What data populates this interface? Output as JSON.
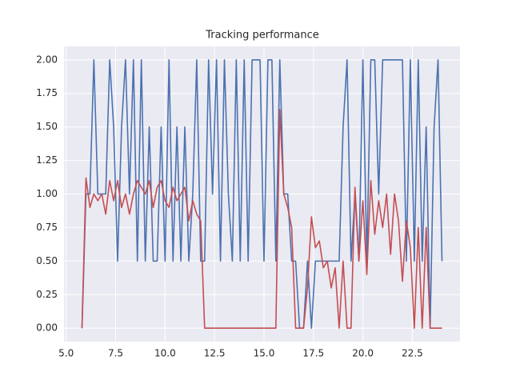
{
  "chart_data": {
    "type": "line",
    "title": "Tracking performance",
    "x": [
      5.8,
      6.0,
      6.2,
      6.4,
      6.6,
      6.8,
      7.0,
      7.2,
      7.4,
      7.6,
      7.8,
      8.0,
      8.2,
      8.4,
      8.6,
      8.8,
      9.0,
      9.2,
      9.4,
      9.6,
      9.8,
      10.0,
      10.2,
      10.4,
      10.6,
      10.8,
      11.0,
      11.2,
      11.4,
      11.6,
      11.8,
      12.0,
      12.2,
      12.4,
      12.6,
      12.8,
      13.0,
      13.2,
      13.4,
      13.6,
      13.8,
      14.0,
      14.2,
      14.4,
      14.6,
      14.8,
      15.0,
      15.2,
      15.4,
      15.6,
      15.8,
      16.0,
      16.2,
      16.4,
      16.6,
      16.8,
      17.0,
      17.2,
      17.4,
      17.6,
      17.8,
      18.0,
      18.2,
      18.4,
      18.6,
      18.8,
      19.0,
      19.2,
      19.4,
      19.6,
      19.8,
      20.0,
      20.2,
      20.4,
      20.6,
      20.8,
      21.0,
      21.2,
      21.4,
      21.6,
      21.8,
      22.0,
      22.2,
      22.4,
      22.6,
      22.8,
      23.0,
      23.2,
      23.4,
      23.6,
      23.8,
      24.0
    ],
    "series": [
      {
        "color": "#4c72b0",
        "values": [
          0,
          1,
          1,
          2,
          1,
          1,
          1,
          2,
          1.5,
          0.5,
          1.5,
          2,
          1,
          2,
          0.5,
          2,
          0.5,
          1.5,
          0.5,
          0.5,
          1.5,
          0.5,
          2,
          0.5,
          1.5,
          0.5,
          1.5,
          0.5,
          1,
          2,
          0.5,
          0.5,
          2,
          1,
          2,
          0.5,
          2,
          1,
          0.5,
          2,
          0.5,
          2,
          0.5,
          2,
          2,
          2,
          0.5,
          2,
          2,
          0.5,
          2,
          1,
          1,
          0.5,
          0.5,
          0,
          0,
          0.5,
          0,
          0.5,
          0.5,
          0.5,
          0.5,
          0.5,
          0.5,
          0.5,
          1.5,
          2,
          0.5,
          1,
          0.5,
          2,
          0.5,
          2,
          2,
          1,
          2,
          2,
          2,
          2,
          2,
          2,
          0.5,
          2,
          0.5,
          2,
          0.5,
          1.5,
          0,
          1.5,
          2,
          0.5
        ]
      },
      {
        "color": "#c44e52",
        "values": [
          0,
          1.12,
          0.9,
          1,
          0.95,
          1,
          0.85,
          1.1,
          0.95,
          1.1,
          0.9,
          1,
          0.85,
          1,
          1.1,
          1.05,
          1,
          1.1,
          0.9,
          1.05,
          1.1,
          0.95,
          0.9,
          1.05,
          0.95,
          1,
          1.05,
          0.8,
          0.95,
          0.85,
          0.8,
          0,
          0,
          0,
          0,
          0,
          0,
          0,
          0,
          0,
          0,
          0,
          0,
          0,
          0,
          0,
          0,
          0,
          0,
          0,
          1.63,
          1,
          0.9,
          0.75,
          0,
          0,
          0,
          0.3,
          0.83,
          0.6,
          0.65,
          0.45,
          0.5,
          0.3,
          0.45,
          0,
          0.5,
          0,
          0,
          1.05,
          0.5,
          0.95,
          0.4,
          1.1,
          0.7,
          0.95,
          0.75,
          1,
          0.55,
          1,
          0.8,
          0.35,
          0.8,
          0.6,
          0,
          0.75,
          0,
          0.75,
          0,
          0,
          0,
          0
        ]
      }
    ],
    "xlim": [
      4.89,
      24.91
    ],
    "ylim": [
      -0.1,
      2.1
    ],
    "xticks": [
      {
        "value": 5.0,
        "label": "5.0"
      },
      7.5,
      {
        "value": 10.0,
        "label": "10.0"
      },
      12.5,
      {
        "value": 15.0,
        "label": "15.0"
      },
      17.5,
      {
        "value": 20.0,
        "label": "20.0"
      },
      22.5
    ],
    "yticks": [
      {
        "value": 0,
        "label": "0.00"
      },
      {
        "value": 0.25,
        "label": "0.25"
      },
      {
        "value": 0.5,
        "label": "0.50"
      },
      {
        "value": 0.75,
        "label": "0.75"
      },
      {
        "value": 1,
        "label": "1.00"
      },
      {
        "value": 1.25,
        "label": "1.25"
      },
      {
        "value": 1.5,
        "label": "1.50"
      },
      {
        "value": 1.75,
        "label": "1.75"
      },
      {
        "value": 2,
        "label": "2.00"
      }
    ],
    "grid": true
  }
}
